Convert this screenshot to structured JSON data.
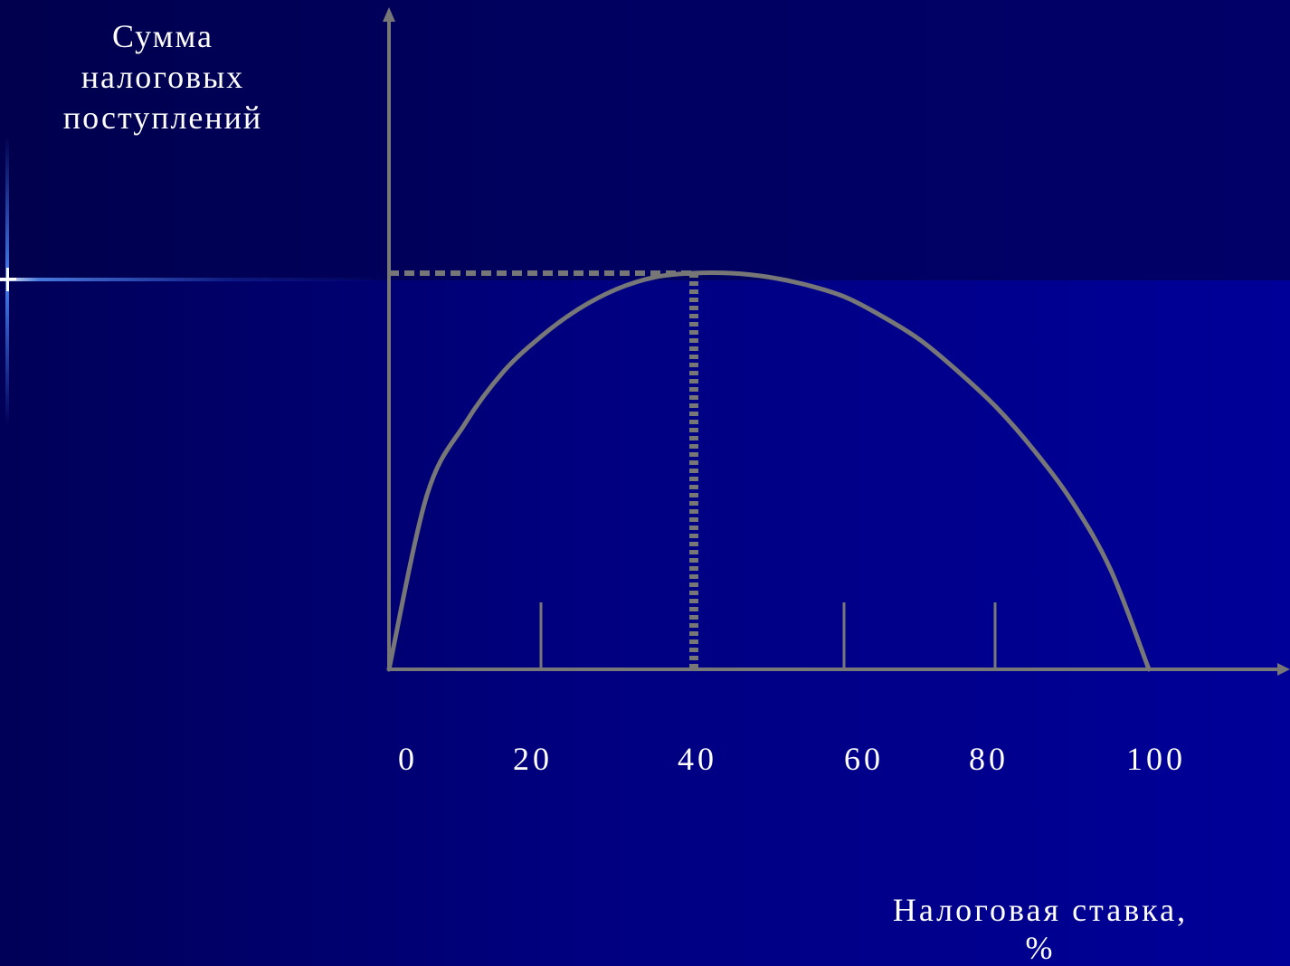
{
  "chart_data": {
    "type": "line",
    "ylabel_lines": [
      "Сумма",
      "налоговых",
      "поступлений"
    ],
    "xlabel_lines": [
      "Налоговая ставка,",
      "%"
    ],
    "x_ticks": [
      0,
      20,
      40,
      60,
      80,
      100
    ],
    "xlim": [
      0,
      100
    ],
    "ylim": [
      0,
      1
    ],
    "series": [
      {
        "x": [
          0,
          5,
          10,
          15,
          20,
          25,
          30,
          35,
          40,
          45,
          50,
          55,
          60,
          65,
          70,
          75,
          80,
          85,
          90,
          95,
          100
        ],
        "values": [
          0,
          0.44,
          0.62,
          0.75,
          0.84,
          0.91,
          0.96,
          0.99,
          1.0,
          1.0,
          0.99,
          0.97,
          0.94,
          0.89,
          0.83,
          0.75,
          0.66,
          0.55,
          0.42,
          0.25,
          0
        ]
      }
    ],
    "peak": {
      "x": 40,
      "y": 1.0
    },
    "grid": false,
    "colors": {
      "curve": "#777777",
      "axis": "#777777",
      "text": "#ffffff"
    }
  }
}
